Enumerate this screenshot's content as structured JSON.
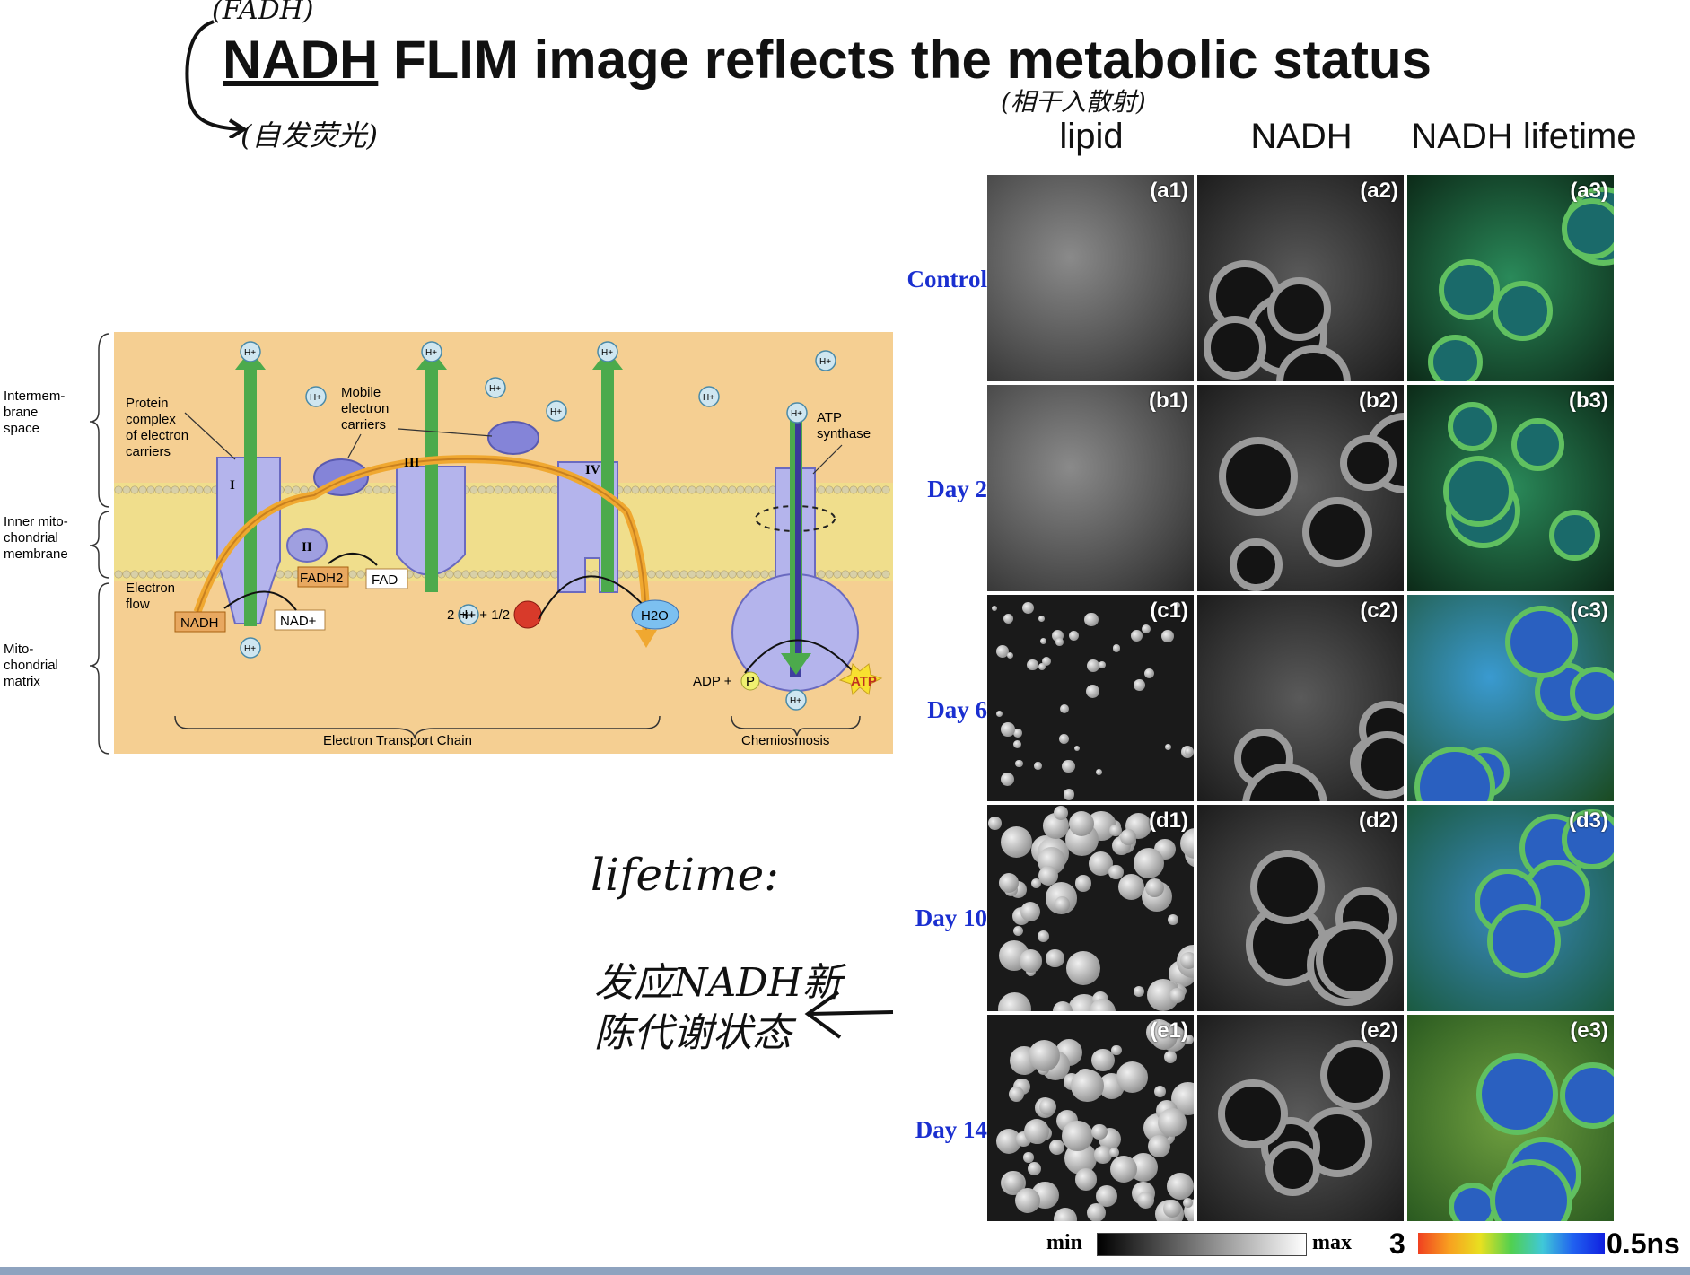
{
  "title": {
    "underlined": "NADH",
    "rest": " FLIM image reflects the metabolic status"
  },
  "annotations": {
    "fadh": "(FADH)",
    "autofluor": "(自发荧光)",
    "scatter": "(相干入散射)",
    "lifetime": "lifetime:",
    "note_line1": "发应NADH新",
    "note_line2": "陈代谢状态"
  },
  "columns": [
    "lipid",
    "NADH",
    "NADH lifetime"
  ],
  "rows": [
    {
      "label": "Control",
      "tiles": [
        "(a1)",
        "(a2)",
        "(a3)"
      ]
    },
    {
      "label": "Day 2",
      "tiles": [
        "(b1)",
        "(b2)",
        "(b3)"
      ]
    },
    {
      "label": "Day 6",
      "tiles": [
        "(c1)",
        "(c2)",
        "(c3)"
      ]
    },
    {
      "label": "Day 10",
      "tiles": [
        "(d1)",
        "(d2)",
        "(d3)"
      ]
    },
    {
      "label": "Day 14",
      "tiles": [
        "(e1)",
        "(e2)",
        "(e3)"
      ]
    }
  ],
  "scalebars": {
    "gray_min": "min",
    "gray_max": "max",
    "color_left": "3",
    "color_right": "0.5ns"
  },
  "diagram": {
    "regions": [
      "Intermem-\nbrane\nspace",
      "Inner mito-\nchondrial\nmembrane",
      "Mito-\nchondrial\nmatrix"
    ],
    "protein_complex": "Protein\ncomplex\nof electron\ncarriers",
    "mobile_carriers": "Mobile\nelectron\ncarriers",
    "atp_synthase": "ATP\nsynthase",
    "electron_flow": "Electron\nflow",
    "complexes": [
      "I",
      "II",
      "III",
      "IV"
    ],
    "hplus": "H+",
    "nadh": "NADH",
    "nad": "NAD+",
    "fadh2": "FADH2",
    "fad": "FAD",
    "oxygen_eq": "2 H+ + 1/2 O2",
    "water": "H2O",
    "adp": "ADP +",
    "p": "P",
    "atp": "ATP",
    "etc": "Electron Transport Chain",
    "chemiosmosis": "Chemiosmosis"
  },
  "colors": {
    "row_label": "#1a2fd0",
    "membrane_bg": "#f5cf92",
    "membrane": "#f0de8c",
    "complex": "#9f9fe0",
    "arrow": "#4caa4c",
    "electron": "#f0a830"
  }
}
